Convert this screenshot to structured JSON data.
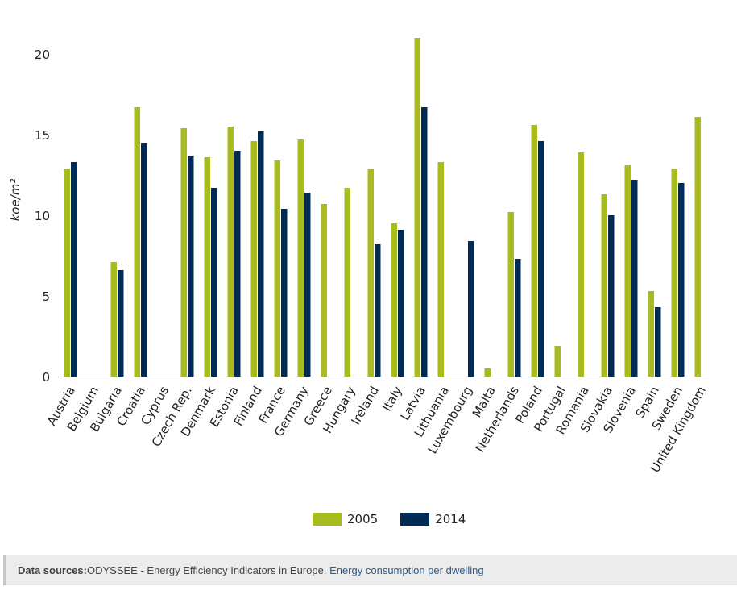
{
  "chart_data": {
    "type": "bar",
    "ylabel": "koe/m²",
    "ylim": [
      0,
      21
    ],
    "yticks": [
      0,
      5,
      10,
      15,
      20
    ],
    "categories": [
      "Austria",
      "Belgium",
      "Bulgaria",
      "Croatia",
      "Cyprus",
      "Czech Rep.",
      "Denmark",
      "Estonia",
      "Finland",
      "France",
      "Germany",
      "Greece",
      "Hungary",
      "Ireland",
      "Italy",
      "Latvia",
      "Lithuania",
      "Luxembourg",
      "Malta",
      "Netherlands",
      "Poland",
      "Portugal",
      "Romania",
      "Slovakia",
      "Slovenia",
      "Spain",
      "Sweden",
      "United Kingdom"
    ],
    "series": [
      {
        "name": "2005",
        "color": "#a9bc1f",
        "values": [
          12.9,
          null,
          7.1,
          16.7,
          null,
          15.4,
          13.6,
          15.5,
          14.6,
          13.4,
          14.7,
          10.7,
          11.7,
          12.9,
          9.5,
          21.0,
          13.3,
          null,
          0.5,
          10.2,
          15.6,
          1.9,
          13.9,
          11.3,
          13.1,
          5.3,
          12.9,
          16.1
        ]
      },
      {
        "name": "2014",
        "color": "#002b54",
        "values": [
          13.3,
          null,
          6.6,
          14.5,
          null,
          13.7,
          11.7,
          14.0,
          15.2,
          10.4,
          11.4,
          null,
          null,
          8.2,
          9.1,
          16.7,
          null,
          8.4,
          null,
          7.3,
          14.6,
          null,
          null,
          10.0,
          12.2,
          4.3,
          12.0,
          null
        ]
      }
    ],
    "legend": "bottom"
  },
  "footer": {
    "label": "Data sources:",
    "text": "ODYSSEE - Energy Efficiency Indicators in Europe. ",
    "link": "Energy consumption per dwelling"
  }
}
